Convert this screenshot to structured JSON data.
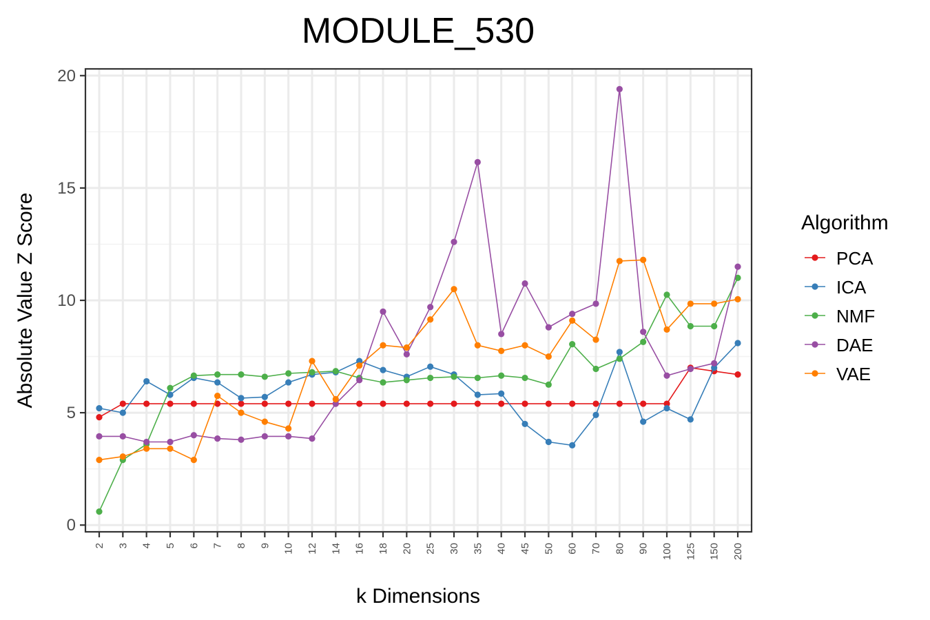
{
  "chart_data": {
    "type": "line",
    "title": "MODULE_530",
    "xlabel": "k Dimensions",
    "ylabel": "Absolute Value Z Score",
    "ylim": [
      -0.3,
      20.3
    ],
    "yticks": [
      0,
      5,
      10,
      15,
      20
    ],
    "grid": true,
    "legend_title": "Algorithm",
    "legend_position": "right",
    "categories": [
      "2",
      "3",
      "4",
      "5",
      "6",
      "7",
      "8",
      "9",
      "10",
      "12",
      "14",
      "16",
      "18",
      "20",
      "25",
      "30",
      "35",
      "40",
      "45",
      "50",
      "60",
      "70",
      "80",
      "90",
      "100",
      "125",
      "150",
      "200"
    ],
    "series": [
      {
        "name": "PCA",
        "color": "#e41a1c",
        "values": [
          4.8,
          5.4,
          5.4,
          5.4,
          5.4,
          5.4,
          5.4,
          5.4,
          5.4,
          5.4,
          5.4,
          5.4,
          5.4,
          5.4,
          5.4,
          5.4,
          5.4,
          5.4,
          5.4,
          5.4,
          5.4,
          5.4,
          5.4,
          5.4,
          5.4,
          7.0,
          6.85,
          6.7
        ]
      },
      {
        "name": "ICA",
        "color": "#377eb8",
        "values": [
          5.2,
          5.0,
          6.4,
          5.8,
          6.55,
          6.35,
          5.65,
          5.7,
          6.35,
          6.7,
          6.8,
          7.3,
          6.9,
          6.6,
          7.05,
          6.7,
          5.8,
          5.85,
          4.5,
          3.7,
          3.55,
          4.9,
          7.7,
          4.6,
          5.2,
          4.7,
          7.0,
          8.1
        ]
      },
      {
        "name": "NMF",
        "color": "#4daf4a",
        "values": [
          0.6,
          2.9,
          3.6,
          6.1,
          6.65,
          6.7,
          6.7,
          6.6,
          6.75,
          6.8,
          6.85,
          6.55,
          6.35,
          6.45,
          6.55,
          6.6,
          6.55,
          6.65,
          6.55,
          6.25,
          8.05,
          6.95,
          7.4,
          8.15,
          10.25,
          8.85,
          8.85,
          11.0
        ]
      },
      {
        "name": "DAE",
        "color": "#984ea3",
        "values": [
          3.95,
          3.95,
          3.7,
          3.7,
          4.0,
          3.85,
          3.8,
          3.95,
          3.95,
          3.85,
          5.4,
          6.45,
          9.5,
          7.6,
          9.7,
          12.6,
          16.15,
          8.5,
          10.75,
          8.8,
          9.4,
          9.85,
          19.4,
          8.6,
          6.65,
          6.95,
          7.2,
          11.5
        ]
      },
      {
        "name": "VAE",
        "color": "#ff7f00",
        "values": [
          2.9,
          3.05,
          3.4,
          3.4,
          2.9,
          5.75,
          5.0,
          4.6,
          4.3,
          7.3,
          5.6,
          7.1,
          8.0,
          7.9,
          9.15,
          10.5,
          8.0,
          7.75,
          8.0,
          7.5,
          9.1,
          8.25,
          11.75,
          11.8,
          8.7,
          9.85,
          9.85,
          10.05
        ]
      }
    ]
  }
}
